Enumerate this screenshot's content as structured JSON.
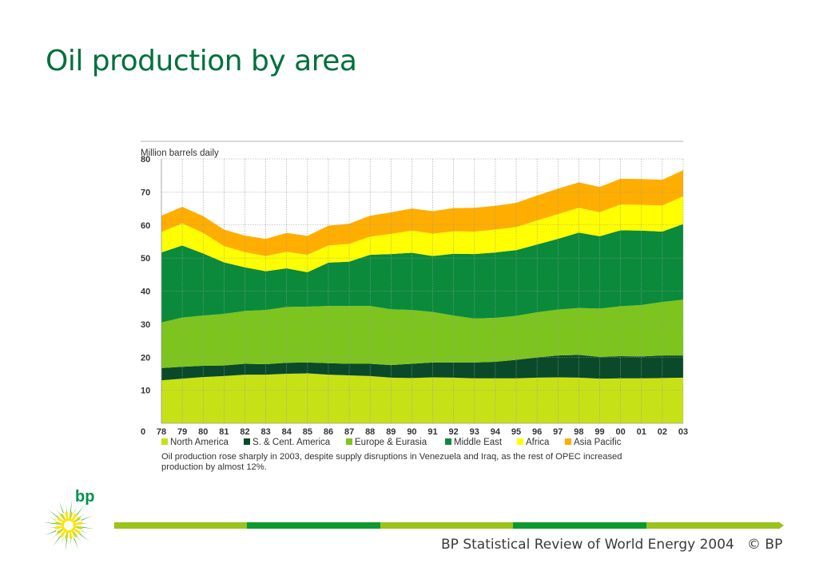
{
  "title": "Oil production by area",
  "footer": {
    "source": "BP Statistical Review of World Energy 2004",
    "copyright": "© BP",
    "bar_colors": [
      "#9ac31c",
      "#0c9a2e",
      "#9ac31c",
      "#0c9a2e",
      "#9ac31c"
    ]
  },
  "logo": {
    "text": "bp",
    "colors": {
      "green": "#3aa935",
      "yellow": "#ffe500",
      "text": "#00914c"
    }
  },
  "chart_data": {
    "type": "area",
    "stacked": true,
    "ylabel": "Million barrels daily",
    "ylim": [
      0,
      80
    ],
    "yticks": [
      "0",
      "10",
      "20",
      "30",
      "40",
      "50",
      "60",
      "70",
      "80"
    ],
    "categories": [
      "78",
      "79",
      "80",
      "81",
      "82",
      "83",
      "84",
      "85",
      "86",
      "87",
      "88",
      "89",
      "90",
      "91",
      "92",
      "93",
      "94",
      "95",
      "96",
      "97",
      "98",
      "99",
      "00",
      "01",
      "02",
      "03"
    ],
    "grid": true,
    "legend_position": "bottom",
    "series": [
      {
        "name": "North America",
        "color": "#c7e117",
        "values": [
          13.0,
          13.5,
          14.0,
          14.3,
          14.7,
          14.7,
          15.0,
          15.1,
          14.7,
          14.5,
          14.3,
          13.8,
          13.7,
          13.9,
          13.8,
          13.6,
          13.6,
          13.6,
          13.8,
          13.9,
          13.8,
          13.5,
          13.6,
          13.6,
          13.7,
          13.8
        ]
      },
      {
        "name": "S. & Cent. America",
        "color": "#0a4a2a",
        "values": [
          3.7,
          3.6,
          3.4,
          3.2,
          3.3,
          3.2,
          3.3,
          3.3,
          3.5,
          3.5,
          3.7,
          3.8,
          4.3,
          4.5,
          4.6,
          4.8,
          5.0,
          5.6,
          6.1,
          6.6,
          6.9,
          6.6,
          6.7,
          6.6,
          6.8,
          6.7
        ]
      },
      {
        "name": "Europe & Eurasia",
        "color": "#7dc41e",
        "values": [
          13.8,
          14.9,
          15.2,
          15.6,
          16.0,
          16.4,
          16.9,
          16.9,
          17.3,
          17.5,
          17.5,
          16.9,
          16.3,
          15.3,
          14.2,
          13.3,
          13.3,
          13.3,
          13.7,
          13.9,
          14.2,
          14.6,
          15.1,
          15.6,
          16.2,
          16.9
        ]
      },
      {
        "name": "Middle East",
        "color": "#0b8a3c",
        "values": [
          21.2,
          21.8,
          18.8,
          15.6,
          13.2,
          11.7,
          11.7,
          10.4,
          13.1,
          13.4,
          15.5,
          16.7,
          17.3,
          16.9,
          18.7,
          19.5,
          19.8,
          19.9,
          20.5,
          21.4,
          22.8,
          21.9,
          23.0,
          22.5,
          21.3,
          22.9
        ]
      },
      {
        "name": "Africa",
        "color": "#ffff00",
        "values": [
          6.2,
          6.7,
          6.2,
          4.9,
          4.6,
          4.6,
          5.0,
          5.3,
          5.2,
          5.4,
          5.5,
          6.1,
          6.7,
          6.8,
          6.8,
          6.8,
          6.9,
          7.0,
          7.3,
          7.5,
          7.5,
          7.3,
          7.8,
          7.8,
          7.9,
          8.4
        ]
      },
      {
        "name": "Asia Pacific",
        "color": "#ffae00",
        "values": [
          4.9,
          5.0,
          5.1,
          5.0,
          5.0,
          5.2,
          5.7,
          5.7,
          6.0,
          6.1,
          6.3,
          6.5,
          6.7,
          6.8,
          7.0,
          7.2,
          7.2,
          7.3,
          7.5,
          7.7,
          7.7,
          7.6,
          7.8,
          7.8,
          7.8,
          7.9
        ]
      }
    ],
    "note": "Oil production rose sharply in 2003, despite supply disruptions in Venezuela and Iraq, as the rest of OPEC increased production by almost 12%."
  }
}
